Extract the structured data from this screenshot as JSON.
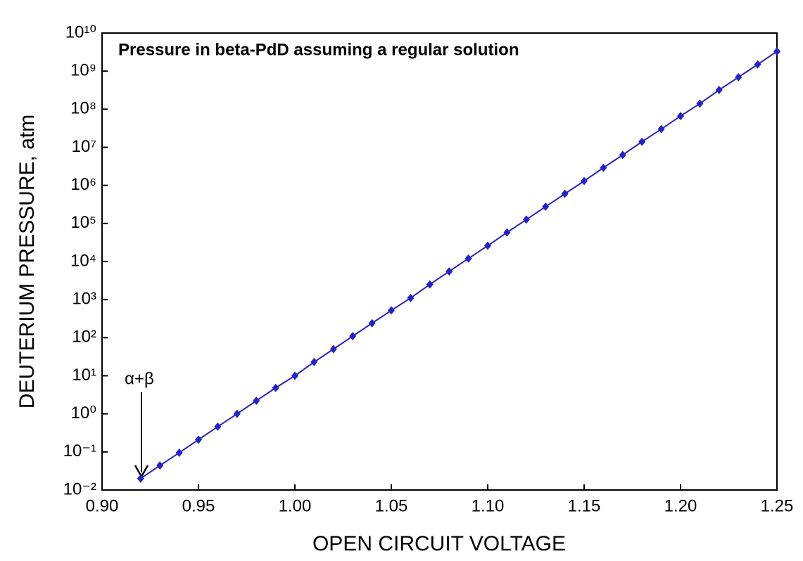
{
  "chart_data": {
    "type": "line",
    "title": "Pressure in beta-PdD assuming a regular solution",
    "x_label": "OPEN CIRCUIT VOLTAGE",
    "y_label": "DEUTERIUM PRESSURE, atm",
    "annotation": "α+β",
    "log_y": true,
    "x": [
      0.92,
      0.93,
      0.94,
      0.95,
      0.96,
      0.97,
      0.98,
      0.99,
      1.0,
      1.01,
      1.02,
      1.03,
      1.04,
      1.05,
      1.06,
      1.07,
      1.08,
      1.09,
      1.1,
      1.11,
      1.12,
      1.13,
      1.14,
      1.15,
      1.16,
      1.17,
      1.18,
      1.19,
      1.2,
      1.21,
      1.22,
      1.23,
      1.24,
      1.25
    ],
    "series": [
      {
        "name": "Pressure",
        "color": "#2323c8",
        "values": [
          0.02,
          0.044,
          0.095,
          0.21,
          0.46,
          1,
          2.2,
          4.8,
          10,
          23,
          50,
          110,
          240,
          520,
          1100,
          2500,
          5500,
          12000,
          26000,
          58000,
          126000,
          275000,
          600000,
          1300000,
          2900000,
          6300000,
          14000000,
          30000000,
          66000000,
          140000000,
          320000000,
          690000000,
          1500000000,
          3300000000
        ]
      }
    ],
    "xlim": [
      0.9,
      1.25
    ],
    "xticks": [
      {
        "value": 0.9,
        "label": "0.90"
      },
      {
        "value": 0.95,
        "label": "0.95"
      },
      {
        "value": 1.0,
        "label": "1.00"
      },
      {
        "value": 1.05,
        "label": "1.05"
      },
      {
        "value": 1.1,
        "label": "1.10"
      },
      {
        "value": 1.15,
        "label": "1.15"
      },
      {
        "value": 1.2,
        "label": "1.20"
      },
      {
        "value": 1.25,
        "label": "1.25"
      }
    ],
    "ylim": [
      0.01,
      10000000000
    ],
    "yticks": [
      {
        "value": 0.01,
        "label": "10⁻²"
      },
      {
        "value": 0.1,
        "label": "10⁻¹"
      },
      {
        "value": 1,
        "label": "10⁰"
      },
      {
        "value": 10,
        "label": "10¹"
      },
      {
        "value": 100,
        "label": "10²"
      },
      {
        "value": 1000,
        "label": "10³"
      },
      {
        "value": 10000,
        "label": "10⁴"
      },
      {
        "value": 100000,
        "label": "10⁵"
      },
      {
        "value": 1000000,
        "label": "10⁶"
      },
      {
        "value": 10000000,
        "label": "10⁷"
      },
      {
        "value": 100000000,
        "label": "10⁸"
      },
      {
        "value": 1000000000,
        "label": "10⁹"
      },
      {
        "value": 10000000000,
        "label": "10¹⁰"
      }
    ]
  }
}
